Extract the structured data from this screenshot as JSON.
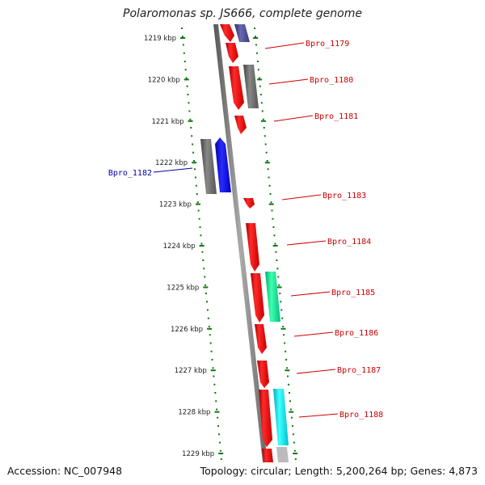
{
  "header": {
    "title": "Polaromonas sp. JS666, complete genome"
  },
  "footer": {
    "accession": "Accession: NC_007948",
    "topology": "Topology: circular; Length: 5,200,264 bp; Genes: 4,873"
  },
  "ruler": {
    "tick_labels": [
      "1219 kbp",
      "1220 kbp",
      "1221 kbp",
      "1222 kbp",
      "1223 kbp",
      "1224 kbp",
      "1225 kbp",
      "1226 kbp",
      "1227 kbp",
      "1228 kbp",
      "1229 kbp"
    ]
  },
  "genes": [
    {
      "name": "Bpro_1179",
      "color": "#cc0000"
    },
    {
      "name": "Bpro_1180",
      "color": "#cc0000"
    },
    {
      "name": "Bpro_1181",
      "color": "#cc0000"
    },
    {
      "name": "Bpro_1182",
      "color": "#0000aa"
    },
    {
      "name": "Bpro_1183",
      "color": "#cc0000"
    },
    {
      "name": "Bpro_1184",
      "color": "#cc0000"
    },
    {
      "name": "Bpro_1185",
      "color": "#cc0000"
    },
    {
      "name": "Bpro_1186",
      "color": "#cc0000"
    },
    {
      "name": "Bpro_1187",
      "color": "#cc0000"
    },
    {
      "name": "Bpro_1188",
      "color": "#cc0000"
    }
  ],
  "colors": {
    "gene_forward": "#ff0000",
    "gene_reverse": "#0000ff",
    "tick_green": "#117711",
    "backbone": "#777777"
  }
}
